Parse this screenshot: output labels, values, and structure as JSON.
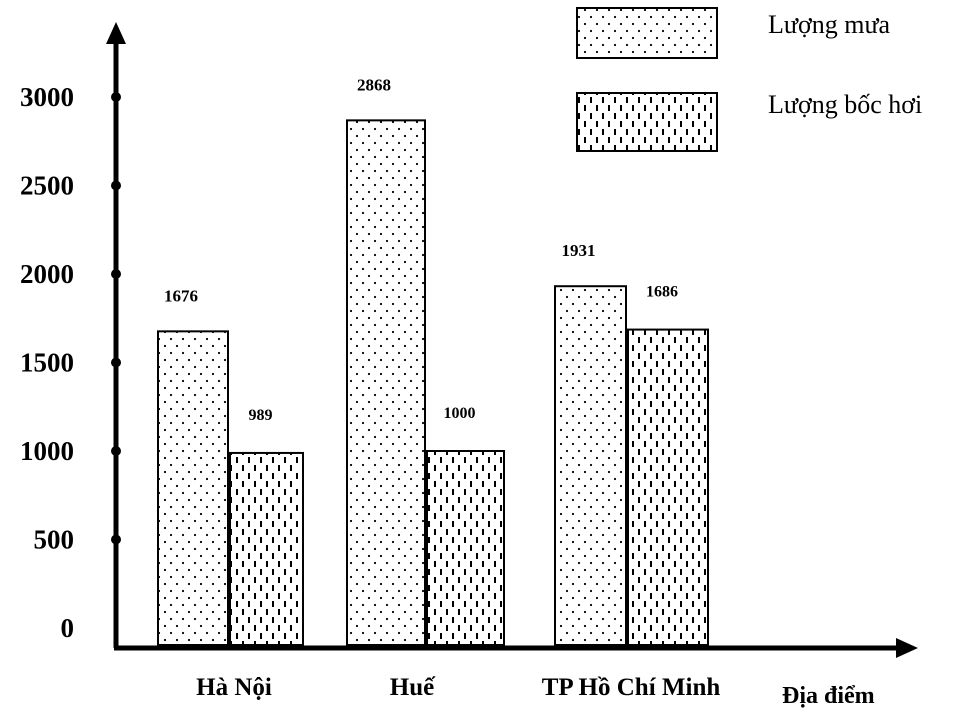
{
  "chart_data": {
    "type": "bar",
    "categories": [
      "Hà Nội",
      "Huế",
      "TP Hồ Chí Minh"
    ],
    "series": [
      {
        "name": "Lượng mưa",
        "values": [
          1676,
          2868,
          1931
        ],
        "pattern": "dots"
      },
      {
        "name": "Lượng bốc hơi",
        "values": [
          989,
          1000,
          1686
        ],
        "pattern": "dashes"
      }
    ],
    "xlabel": "Địa điểm",
    "ylabel": "",
    "ylim": [
      0,
      3000
    ],
    "yticks": [
      0,
      500,
      1000,
      1500,
      2000,
      2500,
      3000
    ],
    "grid": false,
    "legend": "top-right",
    "colors": {
      "ink": "#000000",
      "fill": "#ffffff"
    }
  }
}
